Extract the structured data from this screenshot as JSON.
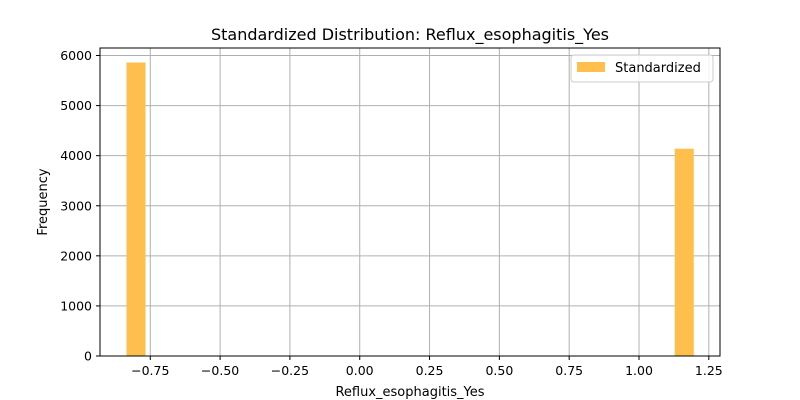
{
  "chart_data": {
    "type": "bar",
    "title": "Standardized Distribution: Reflux_esophagitis_Yes",
    "xlabel": "Reflux_esophagitis_Yes",
    "ylabel": "Frequency",
    "xlim": [
      -0.93,
      1.29
    ],
    "ylim": [
      0,
      6150
    ],
    "xticks": [
      -0.75,
      -0.5,
      -0.25,
      0.0,
      0.25,
      0.5,
      0.75,
      1.0,
      1.25
    ],
    "xtick_labels": [
      "−0.75",
      "−0.50",
      "−0.25",
      "0.00",
      "0.25",
      "0.50",
      "0.75",
      "1.00",
      "1.25"
    ],
    "yticks": [
      0,
      1000,
      2000,
      3000,
      4000,
      5000,
      6000
    ],
    "ytick_labels": [
      "0",
      "1000",
      "2000",
      "3000",
      "4000",
      "5000",
      "6000"
    ],
    "grid": true,
    "legend_placement": "top-right",
    "series": [
      {
        "name": "Standardized",
        "color": "#FFBF4D",
        "bins": [
          {
            "x0": -0.835,
            "x1": -0.767,
            "value": 5860
          },
          {
            "x0": 1.128,
            "x1": 1.196,
            "value": 4140
          }
        ]
      }
    ]
  }
}
